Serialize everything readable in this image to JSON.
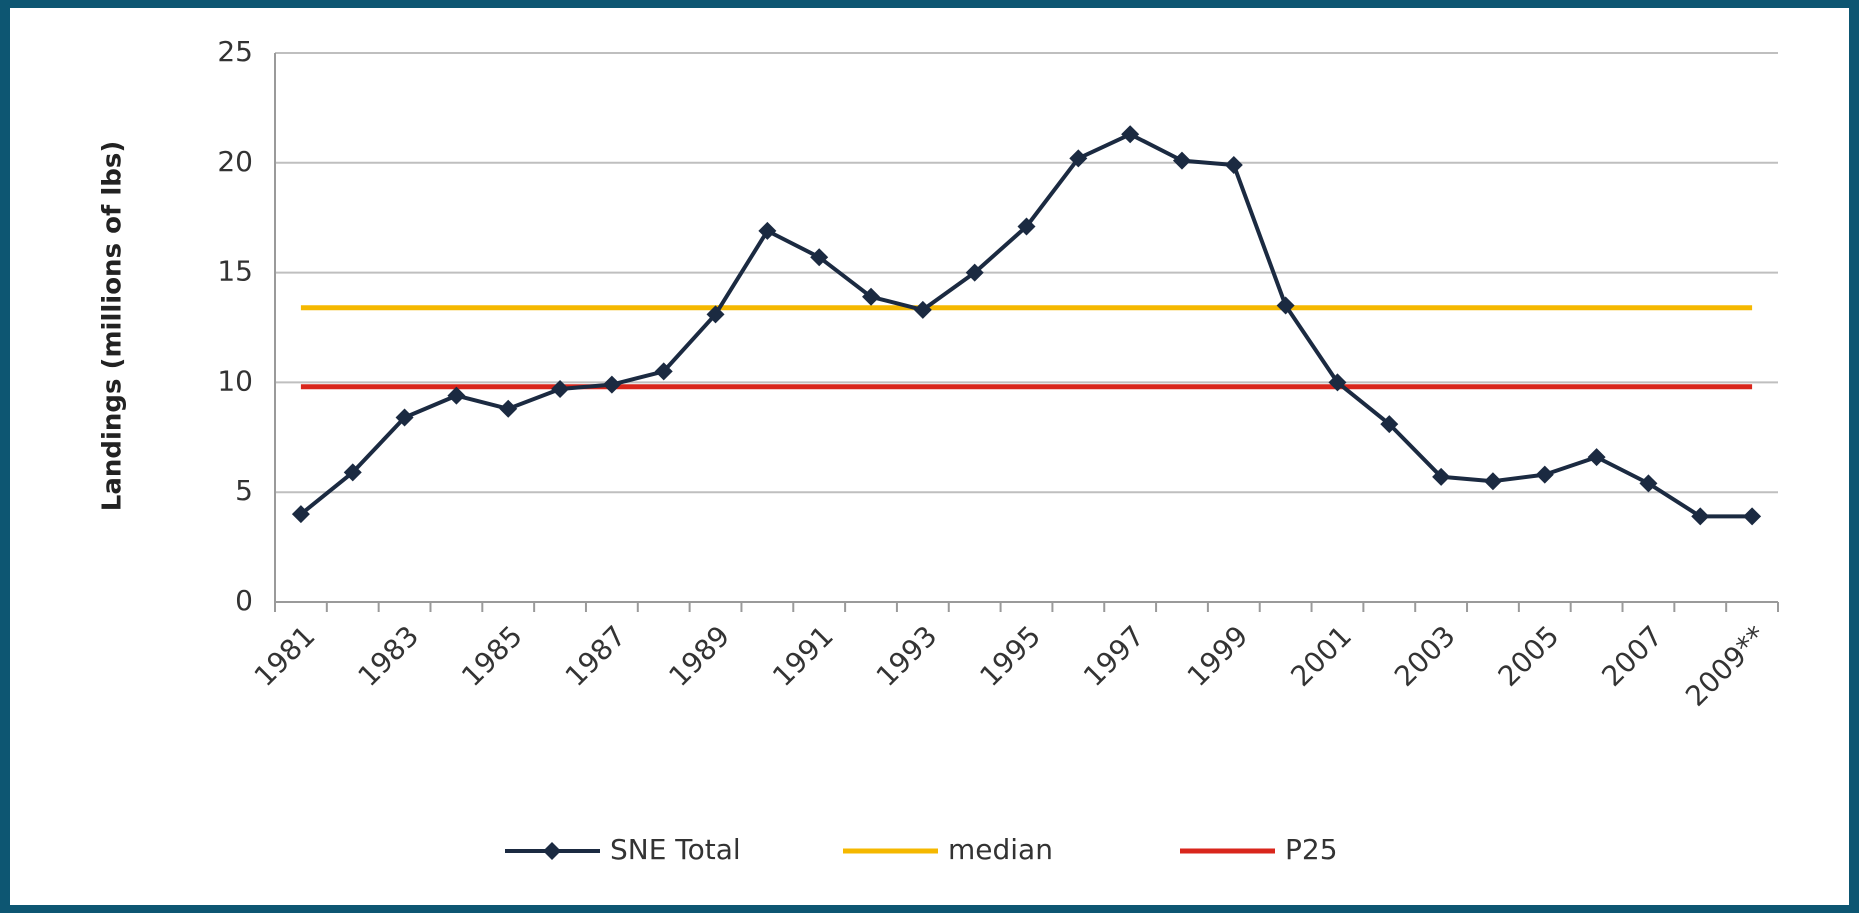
{
  "chart_data": {
    "type": "line",
    "y_label": "Landings (millions of lbs)",
    "categories": [
      "1981",
      null,
      "1983",
      null,
      "1985",
      null,
      "1987",
      null,
      "1989",
      null,
      "1991",
      null,
      "1993",
      null,
      "1995",
      null,
      "1997",
      null,
      "1999",
      null,
      "2001",
      null,
      "2003",
      null,
      "2005",
      null,
      "2007",
      null,
      "2009**"
    ],
    "series": [
      {
        "name": "SNE Total",
        "color": "#1b2a41",
        "marker": "diamond",
        "values": [
          4.0,
          5.9,
          8.4,
          9.4,
          8.8,
          9.7,
          9.9,
          10.5,
          13.1,
          16.9,
          15.7,
          13.9,
          13.3,
          15.0,
          17.1,
          20.2,
          21.3,
          20.1,
          19.9,
          13.5,
          10.0,
          8.1,
          5.7,
          5.5,
          5.8,
          6.6,
          5.4,
          3.9,
          3.9
        ]
      },
      {
        "name": "median",
        "color": "#f5b800",
        "values": [
          13.4,
          13.4,
          13.4,
          13.4,
          13.4,
          13.4,
          13.4,
          13.4,
          13.4,
          13.4,
          13.4,
          13.4,
          13.4,
          13.4,
          13.4,
          13.4,
          13.4,
          13.4,
          13.4,
          13.4,
          13.4,
          13.4,
          13.4,
          13.4,
          13.4,
          13.4,
          13.4,
          13.4,
          13.4
        ]
      },
      {
        "name": "P25",
        "color": "#d9261c",
        "values": [
          9.8,
          9.8,
          9.8,
          9.8,
          9.8,
          9.8,
          9.8,
          9.8,
          9.8,
          9.8,
          9.8,
          9.8,
          9.8,
          9.8,
          9.8,
          9.8,
          9.8,
          9.8,
          9.8,
          9.8,
          9.8,
          9.8,
          9.8,
          9.8,
          9.8,
          9.8,
          9.8,
          9.8,
          9.8
        ]
      }
    ],
    "ylim": [
      0,
      25
    ],
    "yticks": [
      0,
      5,
      10,
      15,
      20,
      25
    ],
    "grid": true,
    "legend": "bottom"
  }
}
